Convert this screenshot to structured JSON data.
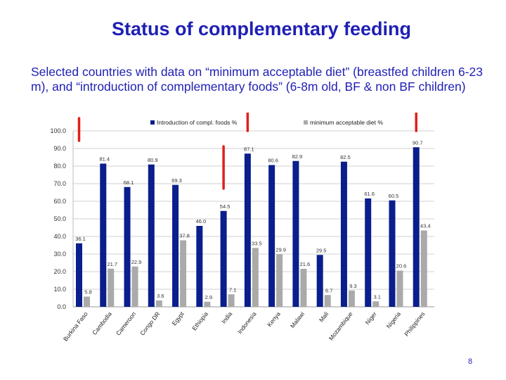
{
  "title": "Status of complementary feeding",
  "subtitle": "Selected countries with data on “minimum acceptable diet” (breastfed children 6-23 m), and “introduction of complementary foods” (6-8m old, BF & non BF children)",
  "page_number": "8",
  "colors": {
    "title": "#1f1fb4",
    "series_intro": "#0a1e8c",
    "series_mad": "#aaaaaa",
    "marker_arrow": "#e0201b"
  },
  "chart_data": {
    "type": "bar",
    "categories": [
      "Burkina Faso",
      "Cambodia",
      "Cameroon",
      "Congo DR",
      "Egypt",
      "Ethiopia",
      "India",
      "Indonesia",
      "Kenya",
      "Malawi",
      "Mali",
      "Mozambique",
      "Niger",
      "Nigeria",
      "Philippines"
    ],
    "series": [
      {
        "name": "Introduction of compl. foods %",
        "values": [
          36.1,
          81.4,
          68.1,
          80.9,
          69.3,
          46.0,
          54.5,
          87.1,
          80.6,
          82.9,
          29.5,
          82.5,
          61.6,
          60.5,
          90.7
        ]
      },
      {
        "name": "minimum acceptable diet %",
        "values": [
          5.8,
          21.7,
          22.9,
          3.6,
          37.8,
          2.9,
          7.1,
          33.5,
          29.9,
          21.6,
          6.7,
          9.3,
          3.1,
          20.6,
          43.4
        ]
      }
    ],
    "value_labels": {
      "intro": [
        "36.1",
        "81.4",
        "68.1",
        "80.9",
        "69.3",
        "46.0",
        "54.5",
        "87.1",
        "80.6",
        "82.9",
        "29.5",
        "82.5",
        "61.6",
        "60.5",
        "90.7"
      ],
      "mad": [
        "5.8",
        "21.7",
        "22.9",
        "3.6",
        "37.8",
        "2.9",
        "7.1",
        "33.5",
        "29.9",
        "21.6",
        "6.7",
        "9.3",
        "3.1",
        "20.6",
        "43.4"
      ]
    },
    "ylim": [
      0,
      100
    ],
    "yticks": [
      "0.0",
      "10.0",
      "20.0",
      "30.0",
      "40.0",
      "50.0",
      "60.0",
      "70.0",
      "80.0",
      "90.0",
      "100.0"
    ],
    "legend_position": "top-right",
    "highlighted_categories": [
      "Burkina Faso",
      "India",
      "Indonesia",
      "Philippines"
    ],
    "xlabel": "",
    "ylabel": ""
  }
}
